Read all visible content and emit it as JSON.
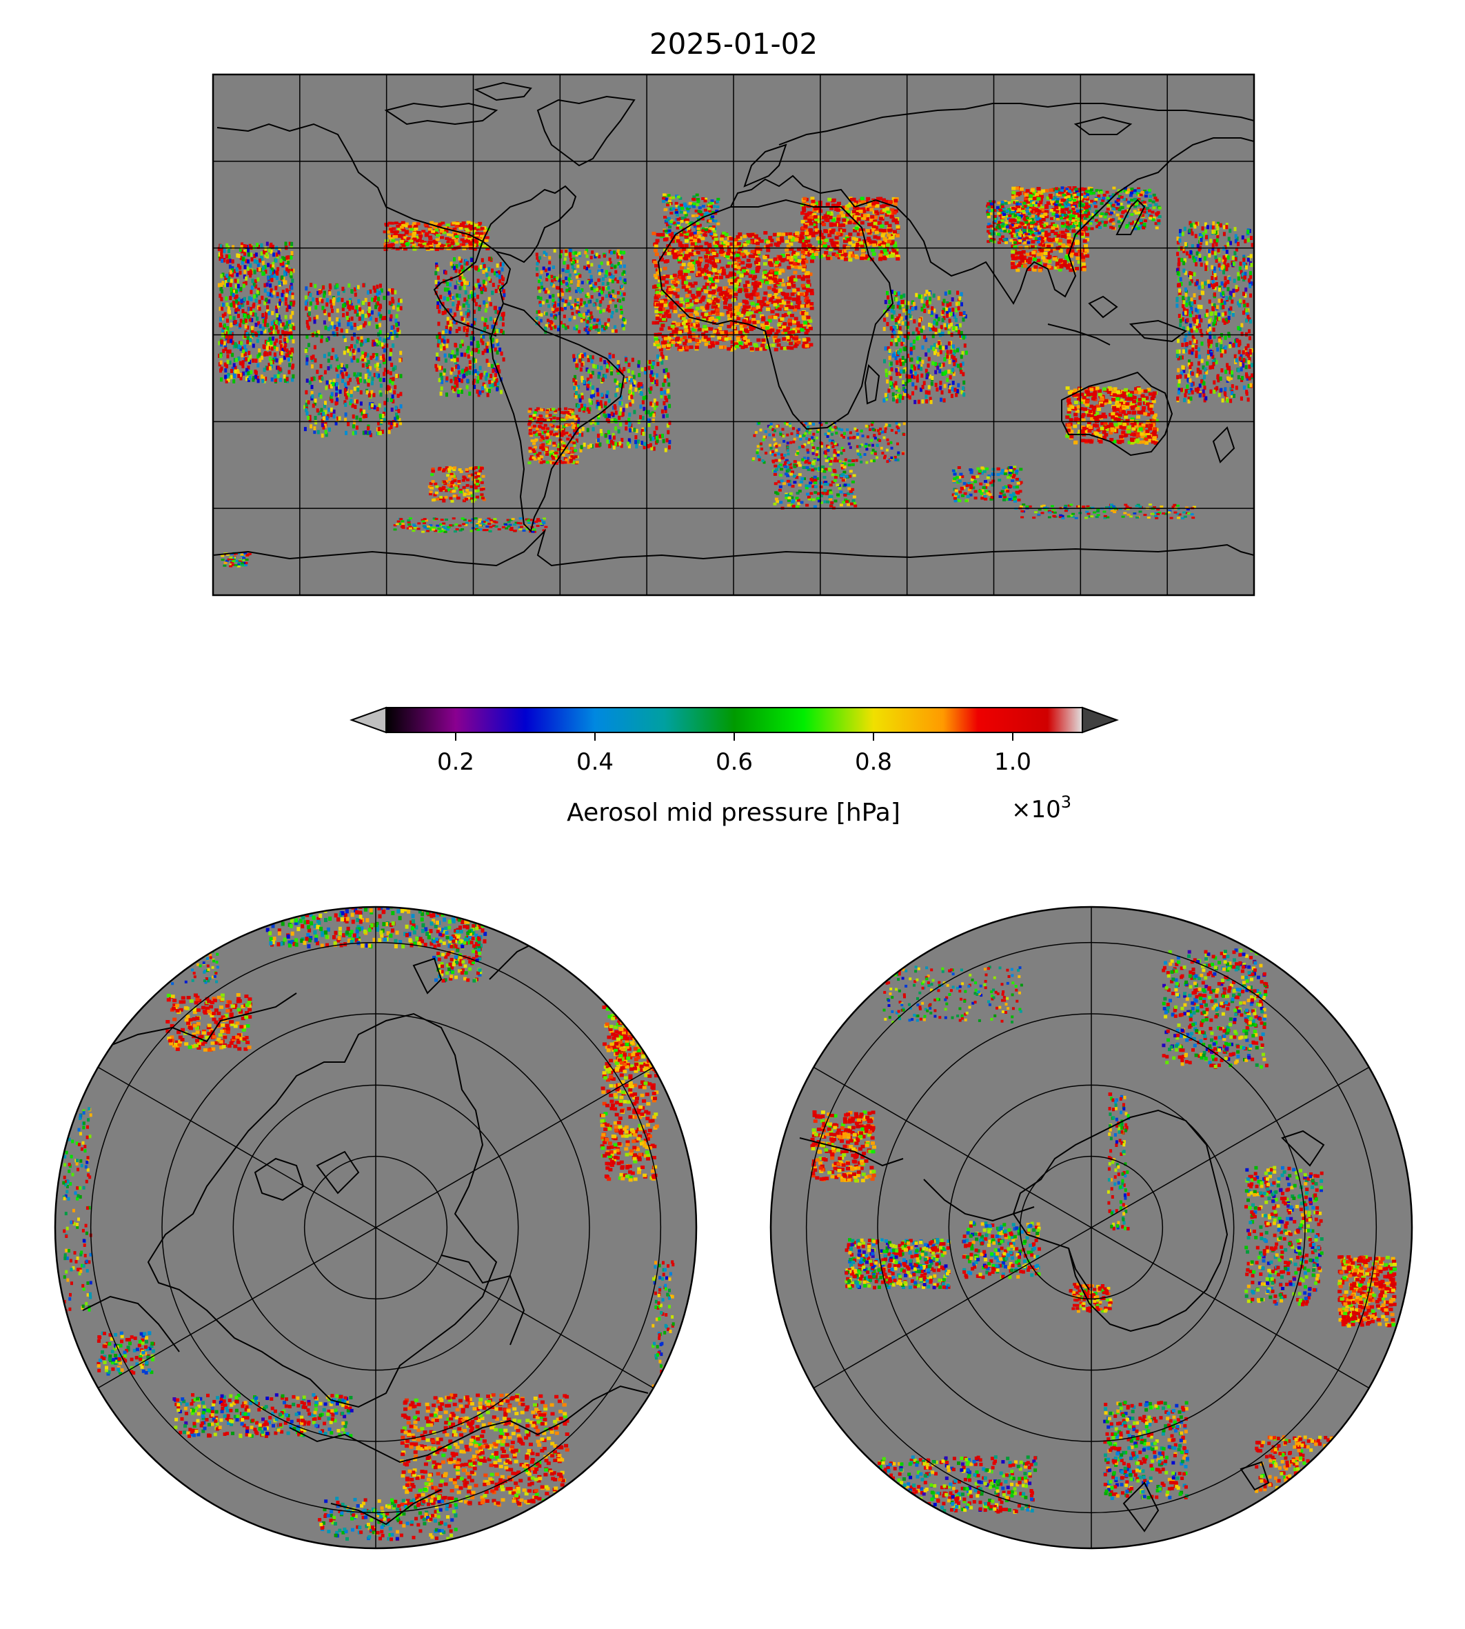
{
  "title": "2025-01-02",
  "colorbar": {
    "label": "Aerosol mid pressure [hPa]",
    "multiplier_base": "×10",
    "multiplier_exp": "3",
    "tick_labels": [
      "0.2",
      "0.4",
      "0.6",
      "0.8",
      "1.0"
    ],
    "tick_values": [
      0.2,
      0.4,
      0.6,
      0.8,
      1.0
    ],
    "range": [
      0.1,
      1.1
    ],
    "extend": "both",
    "under_color": "#bfbfbf",
    "over_color": "#404040",
    "stops": [
      {
        "v": 0.1,
        "c": "#000000"
      },
      {
        "v": 0.2,
        "c": "#8a0090"
      },
      {
        "v": 0.3,
        "c": "#0000d0"
      },
      {
        "v": 0.4,
        "c": "#0088e0"
      },
      {
        "v": 0.5,
        "c": "#00a0a0"
      },
      {
        "v": 0.6,
        "c": "#009a00"
      },
      {
        "v": 0.7,
        "c": "#00ee00"
      },
      {
        "v": 0.8,
        "c": "#f0e000"
      },
      {
        "v": 0.9,
        "c": "#ff9a00"
      },
      {
        "v": 0.95,
        "c": "#ee0000"
      },
      {
        "v": 1.05,
        "c": "#d00000"
      },
      {
        "v": 1.1,
        "c": "#e0e0e0"
      }
    ]
  },
  "map_style": {
    "background": "#808080",
    "coastline_color": "#000000",
    "gridline_color": "#000000",
    "gridlines": true
  },
  "panels": {
    "global": {
      "projection": "plate-carree",
      "lon_grid_step": 30,
      "lat_grid_step": 30
    },
    "north_polar": {
      "projection": "north-polar-stereographic",
      "lat_circles": [
        80,
        70,
        60,
        50
      ],
      "meridian_step": 60
    },
    "south_polar": {
      "projection": "south-polar-stereographic",
      "lat_circles": [
        -80,
        -70,
        -60,
        -50
      ],
      "meridian_step": 60
    }
  }
}
